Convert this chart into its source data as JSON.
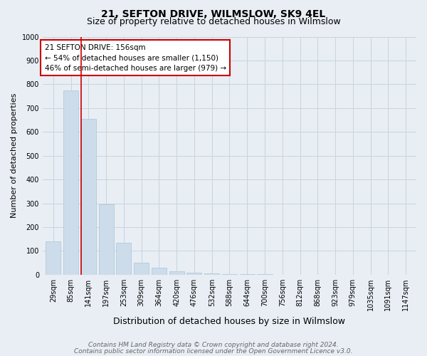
{
  "title1": "21, SEFTON DRIVE, WILMSLOW, SK9 4EL",
  "title2": "Size of property relative to detached houses in Wilmslow",
  "xlabel": "Distribution of detached houses by size in Wilmslow",
  "ylabel": "Number of detached properties",
  "categories": [
    "29sqm",
    "85sqm",
    "141sqm",
    "197sqm",
    "253sqm",
    "309sqm",
    "364sqm",
    "420sqm",
    "476sqm",
    "532sqm",
    "588sqm",
    "644sqm",
    "700sqm",
    "756sqm",
    "812sqm",
    "868sqm",
    "923sqm",
    "979sqm",
    "1035sqm",
    "1091sqm",
    "1147sqm"
  ],
  "values": [
    140,
    775,
    655,
    295,
    135,
    50,
    30,
    15,
    8,
    5,
    3,
    2,
    2,
    1,
    1,
    0,
    0,
    1,
    0,
    0,
    0
  ],
  "bar_color": "#ccdcea",
  "bar_edge_color": "#aec4d6",
  "grid_color": "#c8d4de",
  "annotation_box_text": "21 SEFTON DRIVE: 156sqm\n← 54% of detached houses are smaller (1,150)\n46% of semi-detached houses are larger (979) →",
  "annotation_box_color": "#ffffff",
  "annotation_box_edge_color": "#cc0000",
  "redline_color": "#cc0000",
  "footer1": "Contains HM Land Registry data © Crown copyright and database right 2024.",
  "footer2": "Contains public sector information licensed under the Open Government Licence v3.0.",
  "ylim": [
    0,
    1000
  ],
  "yticks": [
    0,
    100,
    200,
    300,
    400,
    500,
    600,
    700,
    800,
    900,
    1000
  ],
  "background_color": "#e8eef4",
  "plot_background": "#e8eef4",
  "title1_fontsize": 10,
  "title2_fontsize": 9,
  "xlabel_fontsize": 9,
  "ylabel_fontsize": 8,
  "tick_fontsize": 7,
  "annotation_fontsize": 7.5,
  "footer_fontsize": 6.5
}
